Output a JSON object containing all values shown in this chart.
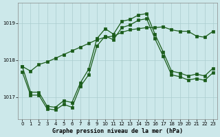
{
  "title": "Graphe pression niveau de la mer (hPa)",
  "background_color": "#cce8ea",
  "grid_color": "#aaccce",
  "line_color": "#1a5c1a",
  "xlim": [
    -0.5,
    23.5
  ],
  "ylim": [
    1016.4,
    1019.55
  ],
  "yticks": [
    1017,
    1018,
    1019
  ],
  "xticks": [
    0,
    1,
    2,
    3,
    4,
    5,
    6,
    7,
    8,
    9,
    10,
    11,
    12,
    13,
    14,
    15,
    16,
    17,
    18,
    19,
    20,
    21,
    22,
    23
  ],
  "line1_y": [
    1017.83,
    1017.7,
    1017.88,
    1017.95,
    1018.05,
    1018.15,
    1018.25,
    1018.35,
    1018.45,
    1018.55,
    1018.62,
    1018.65,
    1018.75,
    1018.82,
    1018.85,
    1018.88,
    1018.88,
    1018.9,
    1018.82,
    1018.78,
    1018.78,
    1018.65,
    1018.62,
    1018.78
  ],
  "line2_y": [
    1017.83,
    1017.13,
    1017.13,
    1016.75,
    1016.72,
    1016.9,
    1016.85,
    1017.38,
    1017.75,
    1018.58,
    1018.85,
    1018.7,
    1019.05,
    1019.1,
    1019.22,
    1019.26,
    1018.7,
    1018.22,
    1017.7,
    1017.65,
    1017.57,
    1017.62,
    1017.57,
    1017.78
  ],
  "line3_y": [
    1017.68,
    1017.05,
    1017.05,
    1016.68,
    1016.65,
    1016.8,
    1016.72,
    1017.28,
    1017.6,
    1018.38,
    1018.65,
    1018.55,
    1018.88,
    1018.95,
    1019.08,
    1019.12,
    1018.58,
    1018.1,
    1017.6,
    1017.55,
    1017.46,
    1017.5,
    1017.45,
    1017.66
  ]
}
